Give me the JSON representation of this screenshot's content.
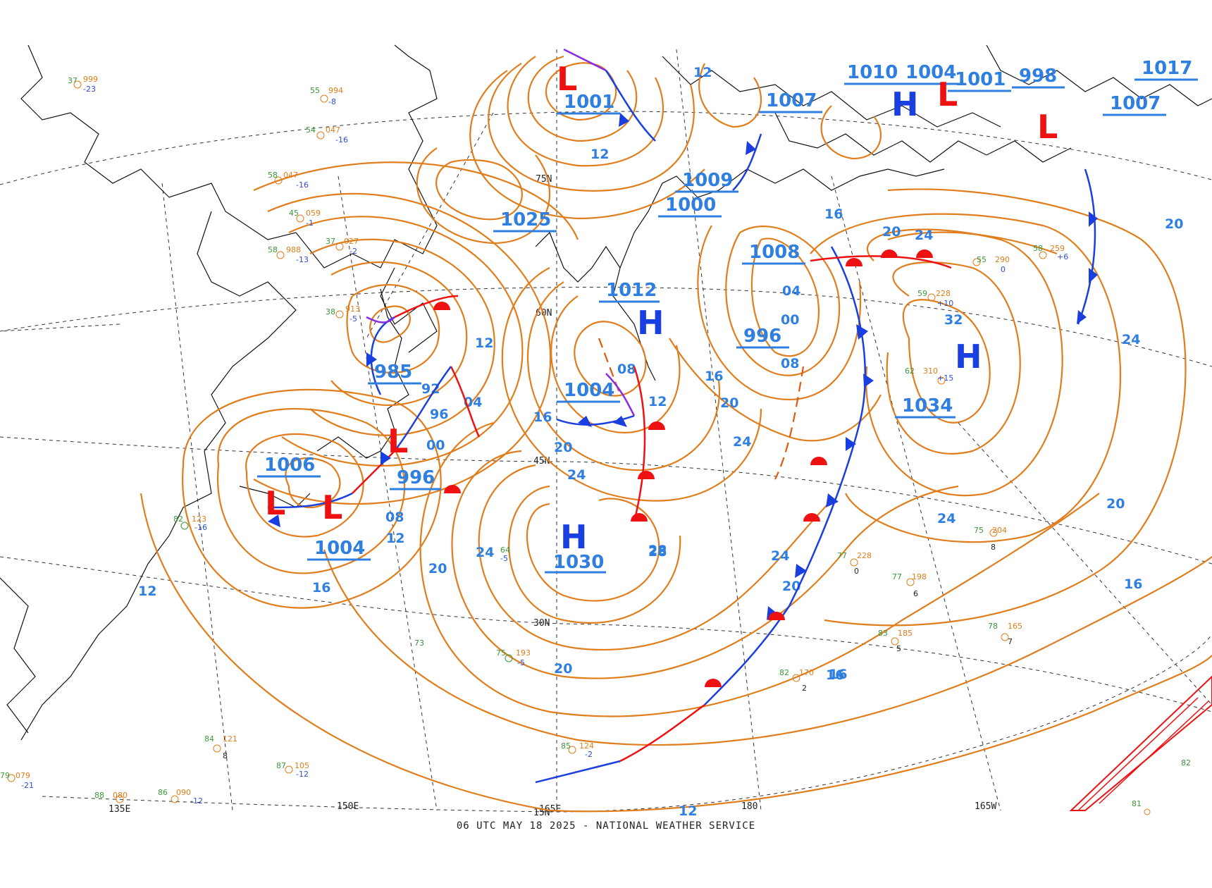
{
  "footer": "06 UTC MAY 18 2025 - NATIONAL WEATHER SERVICE",
  "colors": {
    "isobar": "#e07d1c",
    "isobar_label": "#2f7fe0",
    "high": "#1a3fe0",
    "low": "#ee1111",
    "cold_front": "#1a3fe0",
    "warm_front": "#ee1111",
    "occluded_front": "#8a2be2",
    "trough": "#e05a10"
  },
  "grid_labels": {
    "lat": [
      "75N",
      "60N",
      "45N",
      "30N",
      "15N"
    ],
    "lon": [
      "135E",
      "150E",
      "165E",
      "180",
      "165W"
    ]
  },
  "pressure_centers": [
    {
      "type": "H",
      "value": "1030"
    },
    {
      "type": "H",
      "value": "1034"
    },
    {
      "type": "H",
      "value": "1012"
    },
    {
      "type": "H",
      "value": "1004"
    },
    {
      "type": "H",
      "value": ""
    },
    {
      "type": "L",
      "value": "985"
    },
    {
      "type": "L",
      "value": "996"
    },
    {
      "type": "L",
      "value": "1006"
    },
    {
      "type": "L",
      "value": "1004"
    },
    {
      "type": "L",
      "value": "1001"
    },
    {
      "type": "L",
      "value": "1008"
    },
    {
      "type": "L",
      "value": "996"
    },
    {
      "type": "L",
      "value": "1007"
    },
    {
      "type": "L",
      "value": "1000"
    },
    {
      "type": "L",
      "value": "1009"
    },
    {
      "type": "L",
      "value": "1001"
    },
    {
      "type": "L",
      "value": "998"
    },
    {
      "type": "L",
      "value": "1007"
    },
    {
      "type": "L",
      "value": "1017"
    },
    {
      "type": "L",
      "value": "1025"
    }
  ],
  "extra_values": [
    "1010",
    "1004"
  ],
  "isobar_labels": [
    "12",
    "16",
    "20",
    "24",
    "28",
    "32",
    "24",
    "20",
    "16",
    "12",
    "04",
    "08",
    "00",
    "92",
    "96",
    "12",
    "16",
    "20",
    "24",
    "20",
    "16",
    "12",
    "08",
    "04",
    "00",
    "08",
    "12",
    "16",
    "20",
    "24",
    "28",
    "24",
    "20",
    "16",
    "12",
    "12",
    "20",
    "24",
    "24",
    "20",
    "16"
  ],
  "stations": [
    {
      "t": "37",
      "p": "999",
      "d": "-23"
    },
    {
      "t": "55",
      "p": "994",
      "d": "-8"
    },
    {
      "t": "54",
      "p": "047",
      "d": "-16"
    },
    {
      "t": "58",
      "p": "047",
      "d": "-16"
    },
    {
      "t": "45",
      "p": "059",
      "d": "-1"
    },
    {
      "t": "58",
      "p": "988",
      "d": "-13"
    },
    {
      "t": "37",
      "p": "027",
      "d": "-2"
    },
    {
      "t": "38",
      "p": "913",
      "d": "-5"
    },
    {
      "t": "62",
      "p": "310",
      "d": "+15"
    },
    {
      "t": "59",
      "p": "228",
      "d": "+10"
    },
    {
      "t": "55",
      "p": "290",
      "d": "0"
    },
    {
      "t": "58",
      "p": "259",
      "d": "+6"
    },
    {
      "t": "75",
      "p": "204",
      "d": "8"
    },
    {
      "t": "77",
      "p": "228",
      "d": "0"
    },
    {
      "t": "77",
      "p": "198",
      "d": "6"
    },
    {
      "t": "78",
      "p": "165",
      "d": "7"
    },
    {
      "t": "83",
      "p": "185",
      "d": "5"
    },
    {
      "t": "82",
      "p": "170",
      "d": "2"
    },
    {
      "t": "75",
      "p": "193",
      "d": "-5"
    },
    {
      "t": "73",
      "p": "",
      "d": ""
    },
    {
      "t": "85",
      "p": "124",
      "d": "-2"
    },
    {
      "t": "84",
      "p": "121",
      "d": "8"
    },
    {
      "t": "87",
      "p": "105",
      "d": "-12"
    },
    {
      "t": "86",
      "p": "090",
      "d": "-12"
    },
    {
      "t": "88",
      "p": "080",
      "d": ""
    },
    {
      "t": "79",
      "p": "079",
      "d": "-21"
    },
    {
      "t": "82",
      "p": "123",
      "d": "-16"
    },
    {
      "t": "64",
      "p": "",
      "d": "-5"
    },
    {
      "t": "82",
      "p": "",
      "d": ""
    },
    {
      "t": "81",
      "p": "",
      "d": ""
    }
  ]
}
